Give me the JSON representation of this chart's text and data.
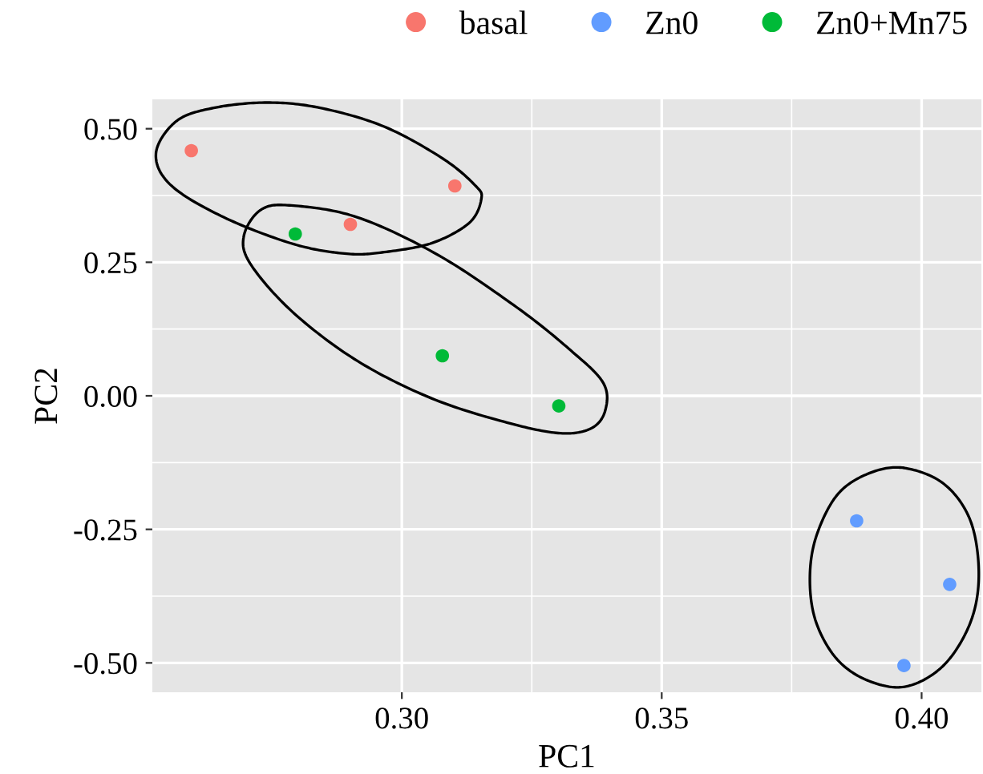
{
  "chart_data": {
    "type": "scatter",
    "xlabel": "PC1",
    "ylabel": "PC2",
    "xlim": [
      0.252,
      0.4115
    ],
    "ylim": [
      -0.555,
      0.555
    ],
    "xticks": [
      {
        "value": 0.3,
        "label": "0.30"
      },
      {
        "value": 0.35,
        "label": "0.35"
      },
      {
        "value": 0.4,
        "label": "0.40"
      }
    ],
    "yticks": [
      {
        "value": -0.5,
        "label": "-0.50"
      },
      {
        "value": -0.25,
        "label": "-0.25"
      },
      {
        "value": 0,
        "label": "0.00"
      },
      {
        "value": 0.25,
        "label": "0.25"
      },
      {
        "value": 0.5,
        "label": "0.50"
      }
    ],
    "grid": true,
    "legend": "top right",
    "marker": "circle",
    "series": [
      {
        "name": "basal",
        "color": "#f8766d",
        "x": [
          0.2595,
          0.3102,
          0.2901
        ],
        "values": [
          0.459,
          0.393,
          0.321
        ]
      },
      {
        "name": "Zn0",
        "color": "#619cff",
        "x": [
          0.3875,
          0.4054,
          0.3966
        ],
        "values": [
          -0.234,
          -0.353,
          -0.505
        ]
      },
      {
        "name": "Zn0+Mn75",
        "color": "#00ba38",
        "x": [
          0.2795,
          0.3078,
          0.3302
        ],
        "values": [
          0.303,
          0.075,
          -0.019
        ]
      }
    ]
  }
}
